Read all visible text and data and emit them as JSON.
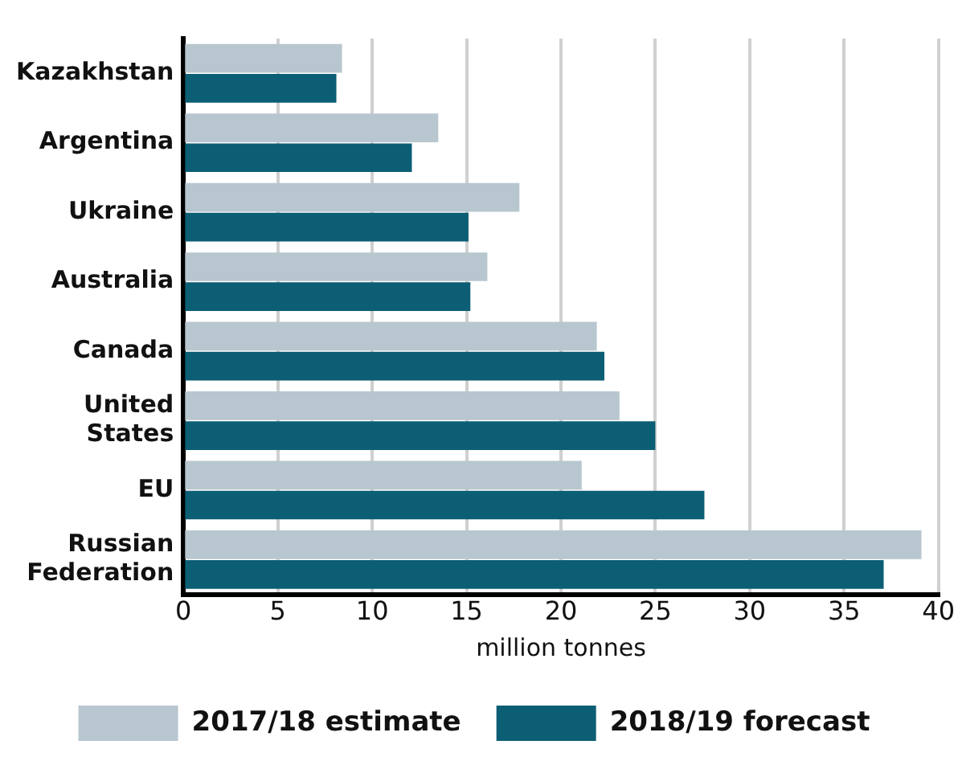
{
  "chart_data": {
    "type": "bar",
    "orientation": "horizontal",
    "xlabel": "million tonnes",
    "categories": [
      "Kazakhstan",
      "Argentina",
      "Ukraine",
      "Australia",
      "Canada",
      "United States",
      "EU",
      "Russian Federation"
    ],
    "series": [
      {
        "name": "2017/18 estimate",
        "color": "#b8c6cf",
        "values": [
          8.4,
          13.5,
          17.8,
          16.1,
          21.9,
          23.1,
          21.1,
          39.1
        ]
      },
      {
        "name": "2018/19 forecast",
        "color": "#0c5e74",
        "values": [
          8.1,
          12.1,
          15.1,
          15.2,
          22.3,
          25.0,
          27.6,
          37.1
        ]
      }
    ],
    "xlim": [
      0,
      40
    ],
    "xticks": [
      0,
      5,
      10,
      15,
      20,
      25,
      30,
      35,
      40
    ],
    "grid": "x",
    "legend": "bottom"
  }
}
